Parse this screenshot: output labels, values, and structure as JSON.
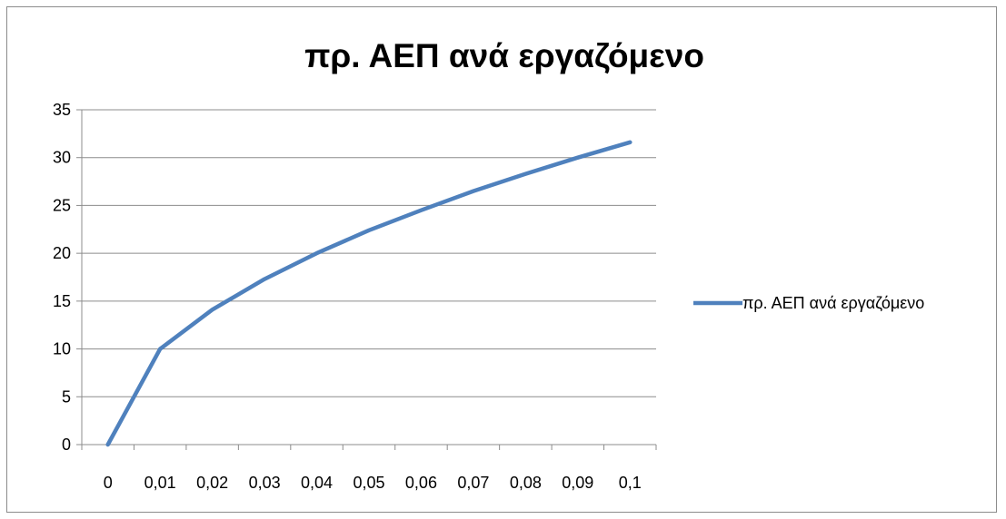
{
  "chart_data": {
    "type": "line",
    "title": "πρ. ΑΕΠ ανά εργαζόμενο",
    "xlabel": "",
    "ylabel": "",
    "categories": [
      "0",
      "0,01",
      "0,02",
      "0,03",
      "0,04",
      "0,05",
      "0,06",
      "0,07",
      "0,08",
      "0,09",
      "0,1"
    ],
    "series": [
      {
        "name": "πρ. ΑΕΠ ανά εργαζόμενο",
        "color": "#4f81bd",
        "values": [
          0,
          10,
          14.1,
          17.3,
          20,
          22.4,
          24.5,
          26.5,
          28.3,
          30,
          31.6
        ]
      }
    ],
    "ylim": [
      0,
      35
    ],
    "yticks": [
      "0",
      "5",
      "10",
      "15",
      "20",
      "25",
      "30",
      "35"
    ],
    "grid": "horizontal",
    "legend_position": "right"
  }
}
